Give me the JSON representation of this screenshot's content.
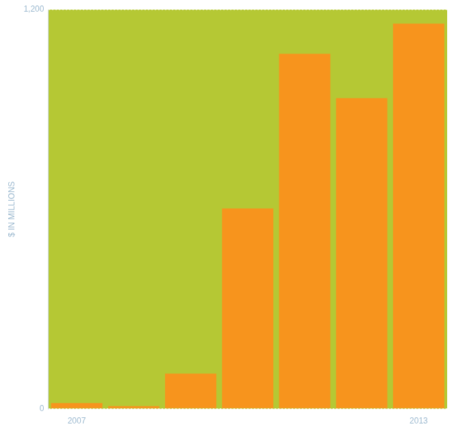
{
  "chart_data": {
    "type": "bar",
    "ylabel": "$ IN MILLIONS",
    "categories": [
      "2007",
      null,
      null,
      null,
      null,
      null,
      "2013"
    ],
    "values": [
      17,
      8,
      106,
      602,
      1067,
      934,
      1158
    ],
    "color": "#f7941d",
    "ylim": [
      0,
      1200
    ],
    "yticks": [
      0,
      {
        "value": 1200,
        "label": "1,200"
      }
    ],
    "grid": true
  }
}
